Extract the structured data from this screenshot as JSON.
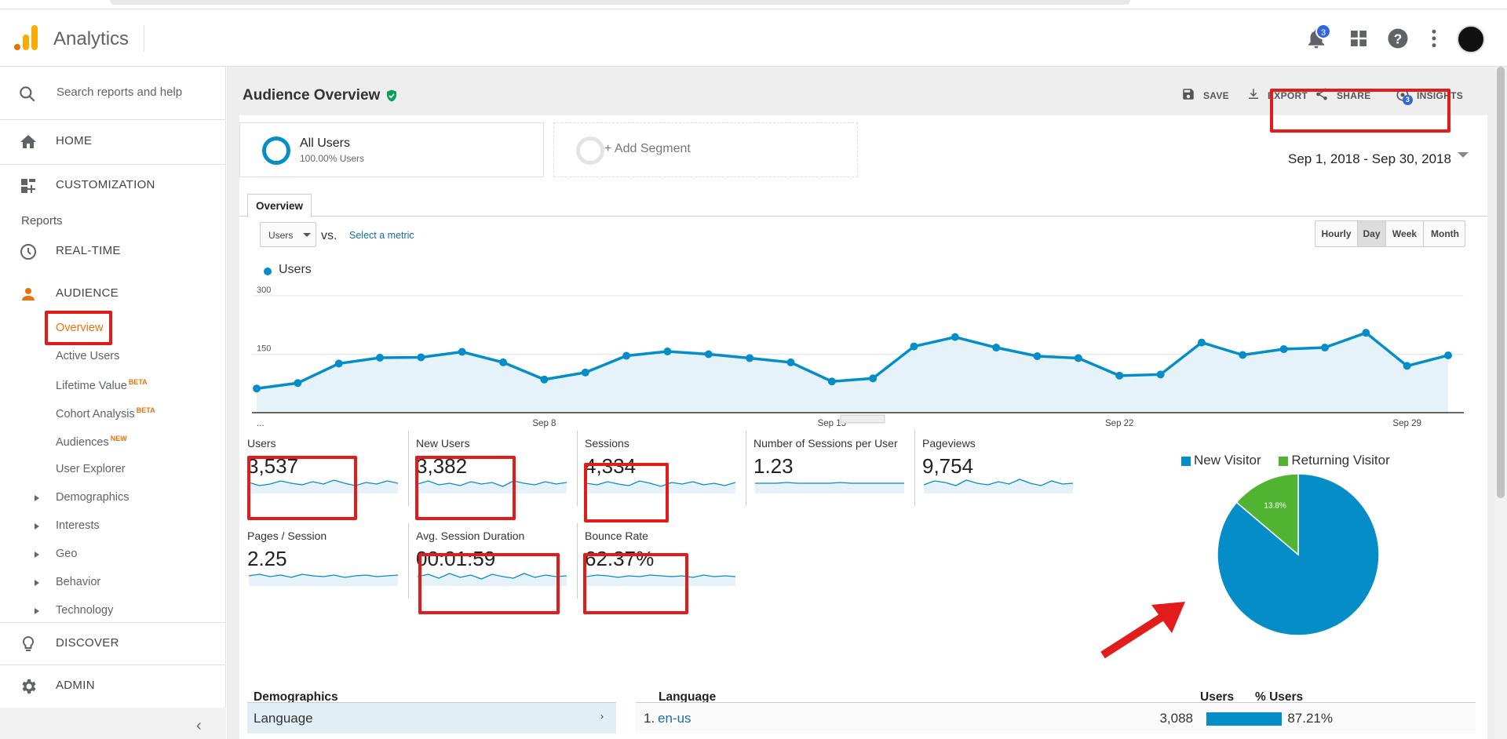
{
  "app": {
    "title": "Analytics",
    "notification_count": "3"
  },
  "sidebar": {
    "search_placeholder": "Search reports and help",
    "home": "HOME",
    "customization": "CUSTOMIZATION",
    "reports_label": "Reports",
    "realtime": "REAL-TIME",
    "audience": "AUDIENCE",
    "audience_items": [
      {
        "label": "Overview"
      },
      {
        "label": "Active Users"
      },
      {
        "label": "Lifetime Value",
        "tag": "BETA"
      },
      {
        "label": "Cohort Analysis",
        "tag": "BETA"
      },
      {
        "label": "Audiences",
        "tag": "NEW"
      },
      {
        "label": "User Explorer"
      },
      {
        "label": "Demographics"
      },
      {
        "label": "Interests"
      },
      {
        "label": "Geo"
      },
      {
        "label": "Behavior"
      },
      {
        "label": "Technology"
      }
    ],
    "discover": "DISCOVER",
    "admin": "ADMIN"
  },
  "header": {
    "page_title": "Audience Overview",
    "actions": {
      "save": "SAVE",
      "export": "EXPORT",
      "share": "SHARE",
      "insights": "INSIGHTS",
      "insights_badge": "3"
    }
  },
  "segments": {
    "active": {
      "name": "All Users",
      "sub": "100.00% Users"
    },
    "add": "+ Add Segment"
  },
  "date_range": "Sep 1, 2018 - Sep 30, 2018",
  "tabs": {
    "overview": "Overview"
  },
  "controls": {
    "metric": "Users",
    "vs": "vs.",
    "select_metric": "Select a metric",
    "granularity": [
      "Hourly",
      "Day",
      "Week",
      "Month"
    ],
    "selected_granularity": "Day"
  },
  "legend": {
    "series": "Users"
  },
  "colors": {
    "primary": "#058dc7",
    "secondary": "#50b432",
    "highlight": "#e21b1b",
    "accent": "#e8710a"
  },
  "chart_data": [
    {
      "type": "area",
      "series": [
        {
          "name": "Users",
          "values": [
            62,
            76,
            126,
            141,
            142,
            156,
            129,
            85,
            103,
            146,
            157,
            150,
            140,
            129,
            80,
            88,
            170,
            194,
            167,
            145,
            140,
            95,
            98,
            180,
            148,
            163,
            167,
            205,
            120,
            147
          ]
        }
      ],
      "x_tick_labels": [
        "...",
        "Sep 8",
        "Sep 15",
        "Sep 22",
        "Sep 29"
      ],
      "y_tick_labels": [
        "300",
        "150"
      ],
      "ylim": [
        0,
        300
      ]
    },
    {
      "type": "pie",
      "categories": [
        "New Visitor",
        "Returning Visitor"
      ],
      "values": [
        86.2,
        13.8
      ],
      "labels": [
        "86.2%",
        "13.8%"
      ],
      "colors": [
        "#058dc7",
        "#50b432"
      ]
    }
  ],
  "scorecards": [
    {
      "name": "Users",
      "value": "3,537"
    },
    {
      "name": "New Users",
      "value": "3,382"
    },
    {
      "name": "Sessions",
      "value": "4,334"
    },
    {
      "name": "Number of Sessions per User",
      "value": "1.23"
    },
    {
      "name": "Pageviews",
      "value": "9,754"
    },
    {
      "name": "Pages / Session",
      "value": "2.25"
    },
    {
      "name": "Avg. Session Duration",
      "value": "00:01:59"
    },
    {
      "name": "Bounce Rate",
      "value": "62.37%"
    }
  ],
  "table": {
    "left_header": "Demographics",
    "left_row": "Language",
    "columns": {
      "dimension": "Language",
      "users": "Users",
      "pct_users": "% Users"
    },
    "rows": [
      {
        "index": "1.",
        "name": "en-us",
        "users": "3,088",
        "pct": "87.21%",
        "pct_value": 0.8721
      }
    ]
  }
}
